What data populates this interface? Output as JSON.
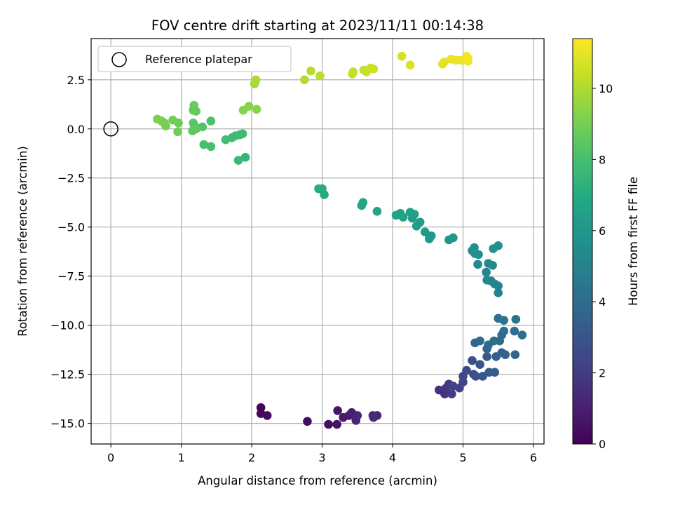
{
  "chart_data": {
    "type": "scatter",
    "title": "FOV centre drift starting at 2023/11/11 00:14:38",
    "xlabel": "Angular distance from reference (arcmin)",
    "ylabel": "Rotation from reference (arcmin)",
    "xlim": [
      -0.28,
      6.15
    ],
    "ylim": [
      -16.05,
      4.6
    ],
    "xticks": [
      "0",
      "1",
      "2",
      "3",
      "4",
      "5",
      "6"
    ],
    "xtick_values": [
      0,
      1,
      2,
      3,
      4,
      5,
      6
    ],
    "yticks": [
      "2.5",
      "0.0",
      "−2.5",
      "−5.0",
      "−7.5",
      "−10.0",
      "−12.5",
      "−15.0"
    ],
    "ytick_values": [
      2.5,
      0,
      -2.5,
      -5,
      -7.5,
      -10,
      -12.5,
      -15
    ],
    "grid": true,
    "colormap": "viridis",
    "colorbar": {
      "label": "Hours from first FF file",
      "range": [
        0,
        11.4
      ],
      "ticks": [
        "0",
        "2",
        "4",
        "6",
        "8",
        "10"
      ],
      "tick_values": [
        0,
        2,
        4,
        6,
        8,
        10
      ]
    },
    "legend": {
      "placement": "upper-left",
      "entries": [
        {
          "label": "Reference platepar",
          "marker": "open-circle"
        }
      ]
    },
    "reference_point": {
      "x": 0,
      "y": 0
    },
    "points": [
      {
        "x": 2.13,
        "y": -14.2,
        "t": 0.1
      },
      {
        "x": 2.13,
        "y": -14.5,
        "t": 0.2
      },
      {
        "x": 2.22,
        "y": -14.6,
        "t": 0.3
      },
      {
        "x": 2.79,
        "y": -14.9,
        "t": 0.4
      },
      {
        "x": 3.09,
        "y": -15.05,
        "t": 0.5
      },
      {
        "x": 3.21,
        "y": -15.05,
        "t": 0.6
      },
      {
        "x": 3.22,
        "y": -14.35,
        "t": 0.7
      },
      {
        "x": 3.3,
        "y": -14.7,
        "t": 0.8
      },
      {
        "x": 3.38,
        "y": -14.6,
        "t": 0.9
      },
      {
        "x": 3.42,
        "y": -14.45,
        "t": 1.0
      },
      {
        "x": 3.48,
        "y": -14.85,
        "t": 1.1
      },
      {
        "x": 3.5,
        "y": -14.6,
        "t": 1.2
      },
      {
        "x": 3.72,
        "y": -14.6,
        "t": 1.25
      },
      {
        "x": 3.78,
        "y": -14.6,
        "t": 1.3
      },
      {
        "x": 3.73,
        "y": -14.7,
        "t": 1.35
      },
      {
        "x": 4.66,
        "y": -13.3,
        "t": 1.6
      },
      {
        "x": 4.74,
        "y": -13.5,
        "t": 1.7
      },
      {
        "x": 4.76,
        "y": -13.2,
        "t": 1.8
      },
      {
        "x": 4.8,
        "y": -13.0,
        "t": 1.9
      },
      {
        "x": 4.84,
        "y": -13.5,
        "t": 2.0
      },
      {
        "x": 4.95,
        "y": -13.2,
        "t": 2.1
      },
      {
        "x": 4.86,
        "y": -13.1,
        "t": 2.2
      },
      {
        "x": 5.0,
        "y": -12.9,
        "t": 2.3
      },
      {
        "x": 5.0,
        "y": -12.6,
        "t": 2.4
      },
      {
        "x": 5.05,
        "y": -12.3,
        "t": 2.5
      },
      {
        "x": 5.15,
        "y": -12.5,
        "t": 2.6
      },
      {
        "x": 5.13,
        "y": -11.8,
        "t": 2.7
      },
      {
        "x": 5.18,
        "y": -12.6,
        "t": 2.8
      },
      {
        "x": 5.28,
        "y": -12.6,
        "t": 2.9
      },
      {
        "x": 5.24,
        "y": -12.0,
        "t": 3.0
      },
      {
        "x": 5.34,
        "y": -11.6,
        "t": 3.1
      },
      {
        "x": 5.37,
        "y": -12.4,
        "t": 3.2
      },
      {
        "x": 5.45,
        "y": -12.4,
        "t": 3.3
      },
      {
        "x": 5.47,
        "y": -11.6,
        "t": 3.4
      },
      {
        "x": 5.55,
        "y": -11.4,
        "t": 3.5
      },
      {
        "x": 5.6,
        "y": -11.5,
        "t": 3.6
      },
      {
        "x": 5.74,
        "y": -11.5,
        "t": 3.65
      },
      {
        "x": 5.34,
        "y": -11.2,
        "t": 3.7
      },
      {
        "x": 5.17,
        "y": -10.9,
        "t": 3.8
      },
      {
        "x": 5.24,
        "y": -10.8,
        "t": 3.85
      },
      {
        "x": 5.36,
        "y": -11.0,
        "t": 3.9
      },
      {
        "x": 5.44,
        "y": -10.8,
        "t": 3.95
      },
      {
        "x": 5.52,
        "y": -10.8,
        "t": 4.0
      },
      {
        "x": 5.55,
        "y": -10.5,
        "t": 4.05
      },
      {
        "x": 5.58,
        "y": -10.3,
        "t": 4.1
      },
      {
        "x": 5.73,
        "y": -10.3,
        "t": 4.15
      },
      {
        "x": 5.84,
        "y": -10.5,
        "t": 4.2
      },
      {
        "x": 5.5,
        "y": -9.65,
        "t": 4.3
      },
      {
        "x": 5.58,
        "y": -9.75,
        "t": 4.35
      },
      {
        "x": 5.75,
        "y": -9.7,
        "t": 4.4
      },
      {
        "x": 5.5,
        "y": -8.35,
        "t": 5.0
      },
      {
        "x": 5.5,
        "y": -8.0,
        "t": 5.05
      },
      {
        "x": 5.4,
        "y": -7.75,
        "t": 5.1
      },
      {
        "x": 5.45,
        "y": -7.9,
        "t": 5.15
      },
      {
        "x": 5.34,
        "y": -7.7,
        "t": 5.2
      },
      {
        "x": 5.33,
        "y": -7.3,
        "t": 5.25
      },
      {
        "x": 5.36,
        "y": -6.85,
        "t": 5.3
      },
      {
        "x": 5.42,
        "y": -6.95,
        "t": 5.35
      },
      {
        "x": 5.21,
        "y": -6.9,
        "t": 5.4
      },
      {
        "x": 5.13,
        "y": -6.2,
        "t": 5.5
      },
      {
        "x": 5.17,
        "y": -6.35,
        "t": 5.55
      },
      {
        "x": 5.22,
        "y": -6.4,
        "t": 5.6
      },
      {
        "x": 5.16,
        "y": -6.05,
        "t": 5.65
      },
      {
        "x": 5.43,
        "y": -6.1,
        "t": 5.7
      },
      {
        "x": 5.5,
        "y": -5.95,
        "t": 5.75
      },
      {
        "x": 4.8,
        "y": -5.65,
        "t": 6.0
      },
      {
        "x": 4.86,
        "y": -5.55,
        "t": 6.05
      },
      {
        "x": 4.55,
        "y": -5.45,
        "t": 6.1
      },
      {
        "x": 4.52,
        "y": -5.6,
        "t": 6.15
      },
      {
        "x": 4.46,
        "y": -5.25,
        "t": 6.2
      },
      {
        "x": 4.34,
        "y": -4.95,
        "t": 6.25
      },
      {
        "x": 4.39,
        "y": -4.75,
        "t": 6.3
      },
      {
        "x": 4.28,
        "y": -4.55,
        "t": 6.35
      },
      {
        "x": 4.31,
        "y": -4.35,
        "t": 6.4
      },
      {
        "x": 4.25,
        "y": -4.25,
        "t": 6.45
      },
      {
        "x": 4.15,
        "y": -4.5,
        "t": 6.5
      },
      {
        "x": 4.11,
        "y": -4.3,
        "t": 6.55
      },
      {
        "x": 4.05,
        "y": -4.4,
        "t": 6.6
      },
      {
        "x": 3.78,
        "y": -4.2,
        "t": 6.7
      },
      {
        "x": 3.56,
        "y": -3.9,
        "t": 6.75
      },
      {
        "x": 3.58,
        "y": -3.75,
        "t": 6.8
      },
      {
        "x": 3.03,
        "y": -3.35,
        "t": 6.9
      },
      {
        "x": 3.0,
        "y": -3.05,
        "t": 6.95
      },
      {
        "x": 2.95,
        "y": -3.05,
        "t": 7.0
      },
      {
        "x": 1.91,
        "y": -1.45,
        "t": 7.5
      },
      {
        "x": 1.81,
        "y": -1.6,
        "t": 7.6
      },
      {
        "x": 1.83,
        "y": -0.3,
        "t": 7.7
      },
      {
        "x": 1.87,
        "y": -0.25,
        "t": 7.75
      },
      {
        "x": 1.77,
        "y": -0.35,
        "t": 7.8
      },
      {
        "x": 1.72,
        "y": -0.45,
        "t": 7.85
      },
      {
        "x": 1.63,
        "y": -0.55,
        "t": 7.9
      },
      {
        "x": 1.42,
        "y": -0.9,
        "t": 8.0
      },
      {
        "x": 1.32,
        "y": -0.8,
        "t": 8.05
      },
      {
        "x": 1.42,
        "y": 0.4,
        "t": 8.2
      },
      {
        "x": 1.3,
        "y": 0.1,
        "t": 8.3
      },
      {
        "x": 1.2,
        "y": 0.1,
        "t": 8.35
      },
      {
        "x": 1.17,
        "y": 0.3,
        "t": 8.4
      },
      {
        "x": 1.18,
        "y": 0.0,
        "t": 8.45
      },
      {
        "x": 1.21,
        "y": 0.0,
        "t": 8.5
      },
      {
        "x": 1.16,
        "y": -0.1,
        "t": 8.55
      },
      {
        "x": 1.17,
        "y": 0.95,
        "t": 8.6
      },
      {
        "x": 1.21,
        "y": 0.9,
        "t": 8.65
      },
      {
        "x": 1.18,
        "y": 1.2,
        "t": 8.7
      },
      {
        "x": 0.96,
        "y": 0.3,
        "t": 8.8
      },
      {
        "x": 0.95,
        "y": -0.15,
        "t": 8.85
      },
      {
        "x": 0.88,
        "y": 0.45,
        "t": 8.9
      },
      {
        "x": 0.76,
        "y": 0.3,
        "t": 8.95
      },
      {
        "x": 0.78,
        "y": 0.15,
        "t": 9.0
      },
      {
        "x": 0.72,
        "y": 0.4,
        "t": 9.05
      },
      {
        "x": 0.66,
        "y": 0.5,
        "t": 9.1
      },
      {
        "x": 1.88,
        "y": 0.95,
        "t": 9.3
      },
      {
        "x": 1.96,
        "y": 1.15,
        "t": 9.35
      },
      {
        "x": 2.07,
        "y": 1.0,
        "t": 9.4
      },
      {
        "x": 2.04,
        "y": 2.3,
        "t": 9.8
      },
      {
        "x": 2.05,
        "y": 2.4,
        "t": 9.85
      },
      {
        "x": 2.06,
        "y": 2.5,
        "t": 9.9
      },
      {
        "x": 2.75,
        "y": 2.5,
        "t": 10.0
      },
      {
        "x": 2.84,
        "y": 2.95,
        "t": 10.1
      },
      {
        "x": 2.97,
        "y": 2.7,
        "t": 10.15
      },
      {
        "x": 3.43,
        "y": 2.8,
        "t": 10.3
      },
      {
        "x": 3.44,
        "y": 2.9,
        "t": 10.35
      },
      {
        "x": 3.59,
        "y": 3.0,
        "t": 10.4
      },
      {
        "x": 3.63,
        "y": 2.9,
        "t": 10.45
      },
      {
        "x": 3.69,
        "y": 3.1,
        "t": 10.5
      },
      {
        "x": 3.73,
        "y": 3.05,
        "t": 10.55
      },
      {
        "x": 4.13,
        "y": 3.7,
        "t": 10.7
      },
      {
        "x": 4.25,
        "y": 3.25,
        "t": 10.75
      },
      {
        "x": 4.71,
        "y": 3.3,
        "t": 10.9
      },
      {
        "x": 4.73,
        "y": 3.4,
        "t": 10.95
      },
      {
        "x": 4.83,
        "y": 3.55,
        "t": 11.0
      },
      {
        "x": 4.9,
        "y": 3.5,
        "t": 11.05
      },
      {
        "x": 4.97,
        "y": 3.5,
        "t": 11.1
      },
      {
        "x": 5.05,
        "y": 3.7,
        "t": 11.15
      },
      {
        "x": 5.07,
        "y": 3.45,
        "t": 11.2
      },
      {
        "x": 5.07,
        "y": 3.6,
        "t": 11.3
      }
    ]
  }
}
